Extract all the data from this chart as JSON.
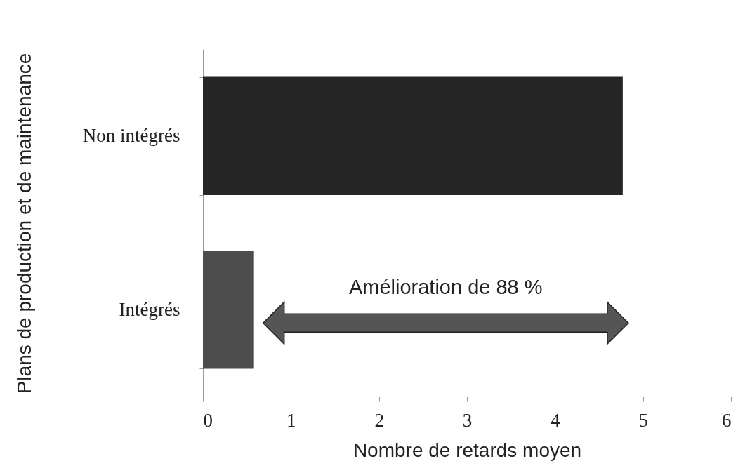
{
  "chart_data": {
    "type": "bar",
    "orientation": "horizontal",
    "categories": [
      "Non intégrés",
      "Intégrés"
    ],
    "values": [
      4.77,
      0.58
    ],
    "colors": [
      "#262626",
      "#4d4d4d"
    ],
    "xlabel": "Nombre de retards moyen",
    "ylabel": "Plans de production et de maintenance",
    "xlim": [
      0,
      6
    ],
    "xticks": [
      0,
      1,
      2,
      3,
      4,
      5,
      6
    ],
    "annotations": [
      "Amélioration de 88 %"
    ]
  }
}
